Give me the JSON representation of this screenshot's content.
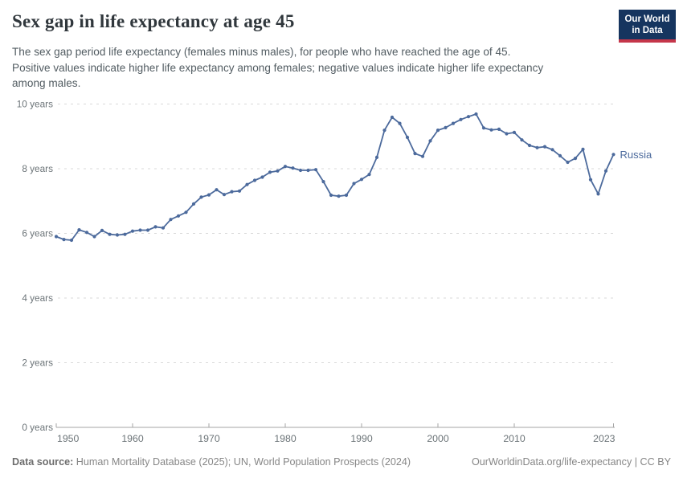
{
  "header": {
    "title": "Sex gap in life expectancy at age 45",
    "subtitle": "The sex gap period life expectancy (females minus males), for people who have reached the age of 45.\nPositive values indicate higher life expectancy among females; negative values indicate higher life expectancy\namong males.",
    "logo_line1": "Our World",
    "logo_line2": "in Data"
  },
  "footer": {
    "source_label": "Data source:",
    "source_text": " Human Mortality Database (2025); UN, World Population Prospects (2024)",
    "rights": "OurWorldinData.org/life-expectancy | CC BY"
  },
  "chart_data": {
    "type": "line",
    "title": "Sex gap in life expectancy at age 45",
    "entity_label": "Russia",
    "ylim": [
      0,
      10
    ],
    "yticks": [
      0,
      2,
      4,
      6,
      8,
      10
    ],
    "ytick_labels": [
      "0 years",
      "2 years",
      "4 years",
      "6 years",
      "8 years",
      "10 years"
    ],
    "xticks": [
      1950,
      1960,
      1970,
      1980,
      1990,
      2000,
      2010,
      2023
    ],
    "grid": "horizontal-dashed",
    "legend": "end-of-line-label",
    "colors": {
      "line": "#4c6a9c",
      "entity_label": "#4c6a9c",
      "grid": "#d9d9d9",
      "axis": "#a5a5a5"
    },
    "x": [
      1950,
      1951,
      1952,
      1953,
      1954,
      1955,
      1956,
      1957,
      1958,
      1959,
      1960,
      1961,
      1962,
      1963,
      1964,
      1965,
      1966,
      1967,
      1968,
      1969,
      1970,
      1971,
      1972,
      1973,
      1974,
      1975,
      1976,
      1977,
      1978,
      1979,
      1980,
      1981,
      1982,
      1983,
      1984,
      1985,
      1986,
      1987,
      1988,
      1989,
      1990,
      1991,
      1992,
      1993,
      1994,
      1995,
      1996,
      1997,
      1998,
      1999,
      2000,
      2001,
      2002,
      2003,
      2004,
      2005,
      2006,
      2007,
      2008,
      2009,
      2010,
      2011,
      2012,
      2013,
      2014,
      2015,
      2016,
      2017,
      2018,
      2019,
      2020,
      2021,
      2022,
      2023
    ],
    "series": [
      {
        "name": "Russia",
        "values": [
          5.9,
          5.81,
          5.79,
          6.11,
          6.03,
          5.9,
          6.09,
          5.97,
          5.95,
          5.97,
          6.07,
          6.1,
          6.1,
          6.2,
          6.17,
          6.43,
          6.54,
          6.65,
          6.91,
          7.12,
          7.19,
          7.35,
          7.2,
          7.29,
          7.31,
          7.51,
          7.64,
          7.74,
          7.89,
          7.93,
          8.07,
          8.02,
          7.95,
          7.95,
          7.97,
          7.6,
          7.18,
          7.15,
          7.18,
          7.54,
          7.67,
          7.82,
          8.35,
          9.19,
          9.59,
          9.4,
          8.97,
          8.47,
          8.38,
          8.86,
          9.19,
          9.27,
          9.4,
          9.52,
          9.61,
          9.69,
          9.26,
          9.2,
          9.22,
          9.08,
          9.12,
          8.89,
          8.72,
          8.65,
          8.68,
          8.59,
          8.4,
          8.2,
          8.32,
          8.6,
          7.66,
          7.22,
          7.93,
          8.44
        ]
      }
    ]
  }
}
